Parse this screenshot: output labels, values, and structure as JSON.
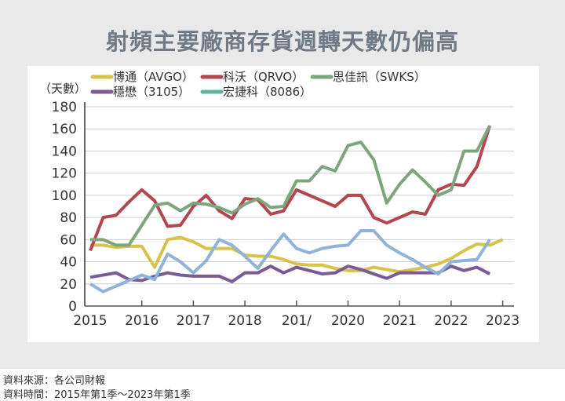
{
  "title": "射頻主要廠商存貨週轉天數仍偏高",
  "source": "資料來源：各公司財報",
  "period": "資料時間：2015年第1季～2023年第1季",
  "chart_data": {
    "type": "line",
    "title": "射頻主要廠商存貨週轉天數仍偏高",
    "ylabel": "（天數）",
    "ylim": [
      0,
      180
    ],
    "yticks": [
      "0",
      "20",
      "40",
      "60",
      "80",
      "100",
      "120",
      "140",
      "160",
      "180"
    ],
    "xticks": [
      "2015",
      "2016",
      "2017",
      "2018",
      "201/",
      "2020",
      "2021",
      "2022",
      "2023"
    ],
    "x_unit": "quarter, starting 2015 Q1",
    "grid": true,
    "legend_placement": "top",
    "series": [
      {
        "name": "博通（AVGO）",
        "color": "#d8c24a",
        "values": [
          55,
          55,
          53,
          54,
          54,
          35,
          60,
          62,
          58,
          52,
          52,
          52,
          46,
          45,
          45,
          42,
          38,
          37,
          37,
          34,
          32,
          32,
          35,
          33,
          31,
          33,
          35,
          38,
          43,
          50,
          56,
          55,
          60
        ]
      },
      {
        "name": "科沃（QRVO）",
        "color": "#b3474f",
        "values": [
          50,
          80,
          82,
          94,
          105,
          95,
          72,
          73,
          90,
          100,
          86,
          79,
          97,
          96,
          83,
          86,
          105,
          100,
          95,
          90,
          100,
          100,
          80,
          75,
          80,
          85,
          83,
          105,
          110,
          109,
          126,
          163
        ]
      },
      {
        "name": "思佳訊（SWKS）",
        "color": "#7ea67e",
        "values": [
          60,
          60,
          55,
          55,
          73,
          91,
          93,
          86,
          93,
          92,
          89,
          84,
          92,
          97,
          89,
          90,
          113,
          113,
          126,
          122,
          145,
          148,
          132,
          93,
          110,
          123,
          112,
          100,
          105,
          140,
          140,
          163
        ]
      },
      {
        "name": "穩懋（3105）",
        "color": "#7a5b95",
        "values": [
          26,
          28,
          30,
          24,
          23,
          27,
          30,
          28,
          27,
          27,
          27,
          22,
          30,
          30,
          36,
          30,
          35,
          32,
          29,
          30,
          36,
          33,
          29,
          25,
          30,
          30,
          30,
          30,
          36,
          32,
          35,
          29
        ]
      },
      {
        "name": "宏捷科（8086）",
        "color": "#8fb3db",
        "legend_color": "#5fb3a3",
        "values": [
          20,
          13,
          18,
          23,
          28,
          24,
          47,
          40,
          30,
          41,
          60,
          55,
          45,
          34,
          50,
          65,
          52,
          48,
          52,
          54,
          55,
          68,
          68,
          55,
          48,
          42,
          35,
          29,
          40,
          41,
          42,
          60
        ]
      }
    ]
  }
}
